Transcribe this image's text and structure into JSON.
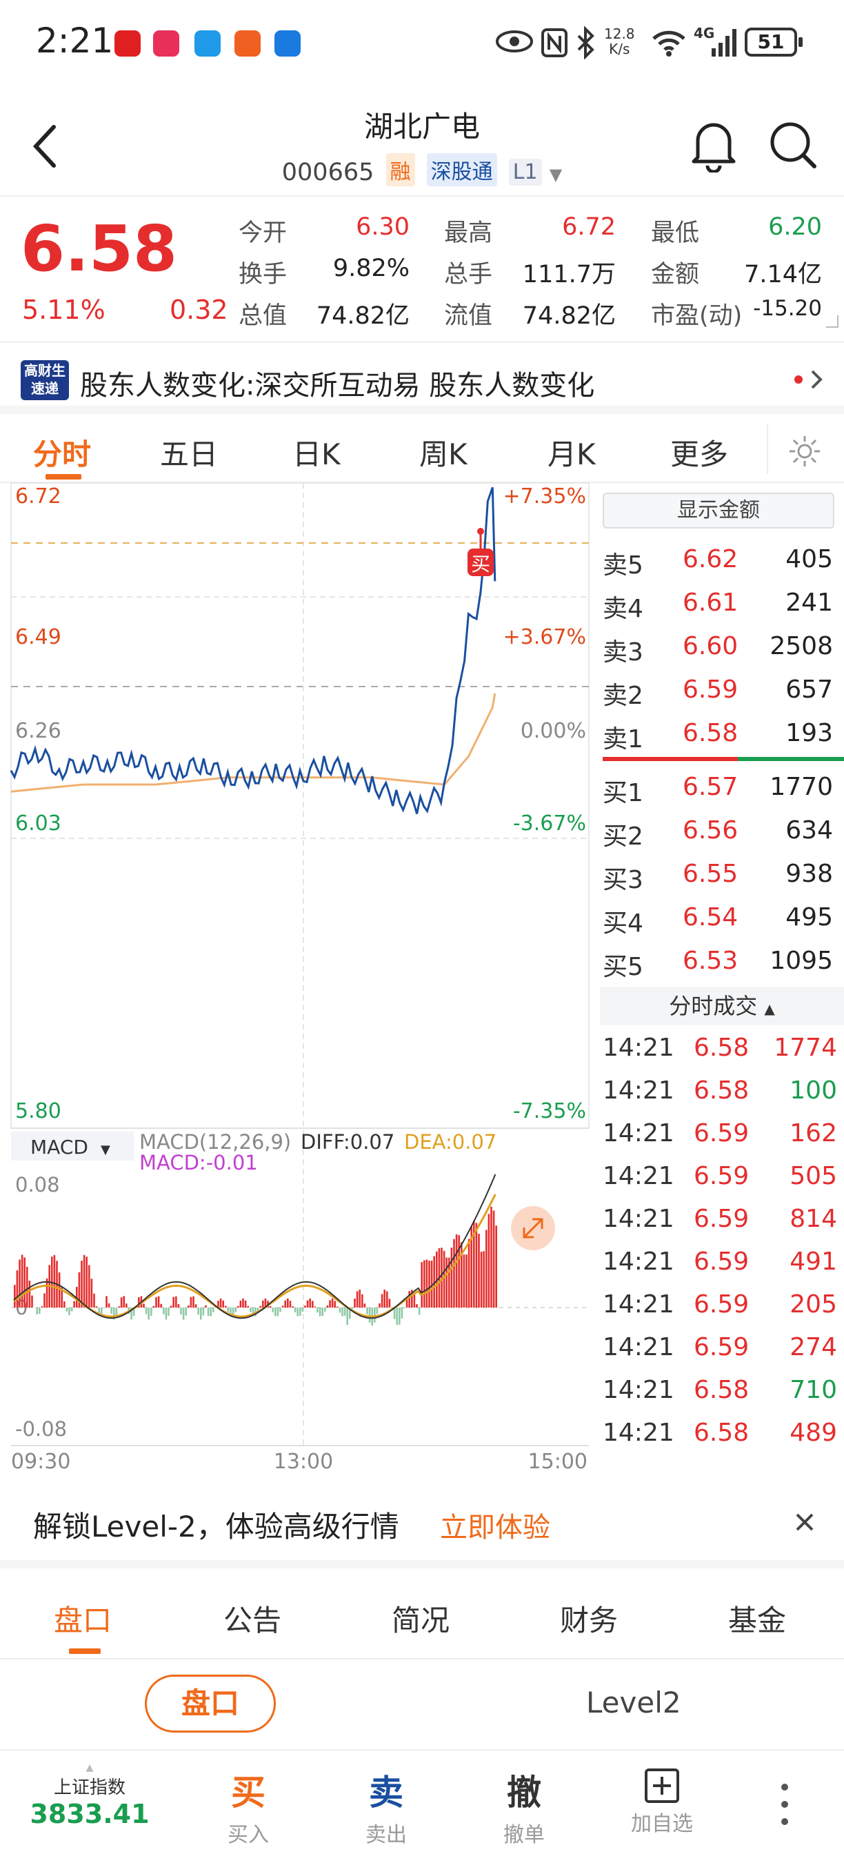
{
  "status": {
    "time": "2:21",
    "net_speed": "12.8\nK/s",
    "net_speed_top": "12.8",
    "net_speed_bottom": "K/s",
    "signal": "4G",
    "battery": "51"
  },
  "header": {
    "title": "湖北广电",
    "code": "000665",
    "tag_rong": "融",
    "tag_sgt": "深股通",
    "tag_level": "L1"
  },
  "quote": {
    "price": "6.58",
    "change_pct": "5.11%",
    "change": "0.32",
    "fields": [
      {
        "label": "今开",
        "value": "6.30",
        "color": "#e52d2d"
      },
      {
        "label": "最高",
        "value": "6.72",
        "color": "#e52d2d"
      },
      {
        "label": "最低",
        "value": "6.20",
        "color": "#1a9d4f"
      },
      {
        "label": "换手",
        "value": "9.82%",
        "color": "#222"
      },
      {
        "label": "总手",
        "value": "111.7万",
        "color": "#222"
      },
      {
        "label": "金额",
        "value": "7.14亿",
        "color": "#222"
      },
      {
        "label": "总值",
        "value": "74.82亿",
        "color": "#222"
      },
      {
        "label": "流值",
        "value": "74.82亿",
        "color": "#222"
      },
      {
        "label": "市盈(动)",
        "value": "-15.20",
        "color": "#222"
      }
    ]
  },
  "news": {
    "logo_top": "高财生",
    "logo_bottom": "速递",
    "text": "股东人数变化:深交所互动易 股东人数变化"
  },
  "tabs": [
    "分时",
    "五日",
    "日K",
    "周K",
    "月K",
    "更多"
  ],
  "chart_labels": {
    "y_top": "6.72",
    "y_49": "6.49",
    "y_26": "6.26",
    "y_03": "6.03",
    "y_bottom": "5.80",
    "p_top": "+7.35%",
    "p_up": "+3.67%",
    "p_zero": "0.00%",
    "p_dn": "-3.67%",
    "p_bottom": "-7.35%",
    "x_start": "09:30",
    "x_mid": "13:00",
    "x_end": "15:00",
    "buy_marker": "买",
    "macd_selector": "MACD",
    "macd_params": "MACD(12,26,9)",
    "diff": "DIFF:0.07",
    "dea": "DEA:0.07",
    "macd_val": "MACD:-0.01",
    "macd_top": "0.08",
    "macd_zero": "0",
    "macd_bottom": "-0.08"
  },
  "chart_data": {
    "type": "line",
    "title": "",
    "x_range": [
      "09:30",
      "15:00"
    ],
    "ylim": [
      5.8,
      6.72
    ],
    "prev_close": 6.26,
    "series": [
      {
        "name": "",
        "x": [
          "09:30",
          "09:40",
          "09:50",
          "10:00",
          "10:10",
          "10:20",
          "10:30",
          "10:40",
          "10:50",
          "11:00",
          "11:10",
          "11:20",
          "11:30",
          "13:10",
          "13:20",
          "13:30",
          "13:40",
          "13:50",
          "14:00",
          "14:05",
          "14:10",
          "14:15",
          "14:18",
          "14:20",
          "14:21"
        ],
        "values": [
          6.31,
          6.34,
          6.31,
          6.32,
          6.32,
          6.33,
          6.31,
          6.31,
          6.32,
          6.3,
          6.3,
          6.31,
          6.3,
          6.32,
          6.31,
          6.29,
          6.27,
          6.26,
          6.28,
          6.4,
          6.52,
          6.55,
          6.68,
          6.7,
          6.58
        ]
      },
      {
        "name": "",
        "x": [
          "09:30",
          "10:00",
          "10:30",
          "11:00",
          "11:30",
          "13:30",
          "14:00",
          "14:10",
          "14:20",
          "14:21"
        ],
        "values": [
          6.28,
          6.29,
          6.29,
          6.3,
          6.3,
          6.3,
          6.29,
          6.33,
          6.4,
          6.42
        ]
      }
    ],
    "macd": {
      "diff": 0.07,
      "dea": 0.07,
      "macd": -0.01,
      "ylim": [
        -0.08,
        0.08
      ]
    }
  },
  "panel": {
    "show_amount": "显示金额",
    "trade_header": "分时成交"
  },
  "asks": [
    {
      "label": "卖5",
      "price": "6.62",
      "vol": "405"
    },
    {
      "label": "卖4",
      "price": "6.61",
      "vol": "241"
    },
    {
      "label": "卖3",
      "price": "6.60",
      "vol": "2508"
    },
    {
      "label": "卖2",
      "price": "6.59",
      "vol": "657"
    },
    {
      "label": "卖1",
      "price": "6.58",
      "vol": "193"
    }
  ],
  "bids": [
    {
      "label": "买1",
      "price": "6.57",
      "vol": "1770"
    },
    {
      "label": "买2",
      "price": "6.56",
      "vol": "634"
    },
    {
      "label": "买3",
      "price": "6.55",
      "vol": "938"
    },
    {
      "label": "买4",
      "price": "6.54",
      "vol": "495"
    },
    {
      "label": "买5",
      "price": "6.53",
      "vol": "1095"
    }
  ],
  "trades": [
    {
      "time": "14:21",
      "price": "6.58",
      "vol": "1774",
      "color": "#e52d2d"
    },
    {
      "time": "14:21",
      "price": "6.58",
      "vol": "100",
      "color": "#1a9d4f"
    },
    {
      "time": "14:21",
      "price": "6.59",
      "vol": "162",
      "color": "#e52d2d"
    },
    {
      "time": "14:21",
      "price": "6.59",
      "vol": "505",
      "color": "#e52d2d"
    },
    {
      "time": "14:21",
      "price": "6.59",
      "vol": "814",
      "color": "#e52d2d"
    },
    {
      "time": "14:21",
      "price": "6.59",
      "vol": "491",
      "color": "#e52d2d"
    },
    {
      "time": "14:21",
      "price": "6.59",
      "vol": "205",
      "color": "#e52d2d"
    },
    {
      "time": "14:21",
      "price": "6.59",
      "vol": "274",
      "color": "#e52d2d"
    },
    {
      "time": "14:21",
      "price": "6.58",
      "vol": "710",
      "color": "#1a9d4f"
    },
    {
      "time": "14:21",
      "price": "6.58",
      "vol": "489",
      "color": "#e52d2d"
    }
  ],
  "banner": {
    "text": "解锁Level-2，体验高级行情",
    "action": "立即体验"
  },
  "bottom_tabs": [
    "盘口",
    "公告",
    "简况",
    "财务",
    "基金"
  ],
  "sub_tabs": {
    "left": "盘口",
    "right": "Level2"
  },
  "footer": {
    "index_name": "上证指数",
    "index_value": "3833.41",
    "buy_big": "买",
    "buy_small": "买入",
    "sell_big": "卖",
    "sell_small": "卖出",
    "cancel_big": "撤",
    "cancel_small": "撤单",
    "add_small": "加自选"
  },
  "colors": {
    "up": "#e52d2d",
    "down": "#1a9d4f",
    "accent": "#f06a1a",
    "line": "#1a4fa0",
    "avg": "#f0b070"
  }
}
